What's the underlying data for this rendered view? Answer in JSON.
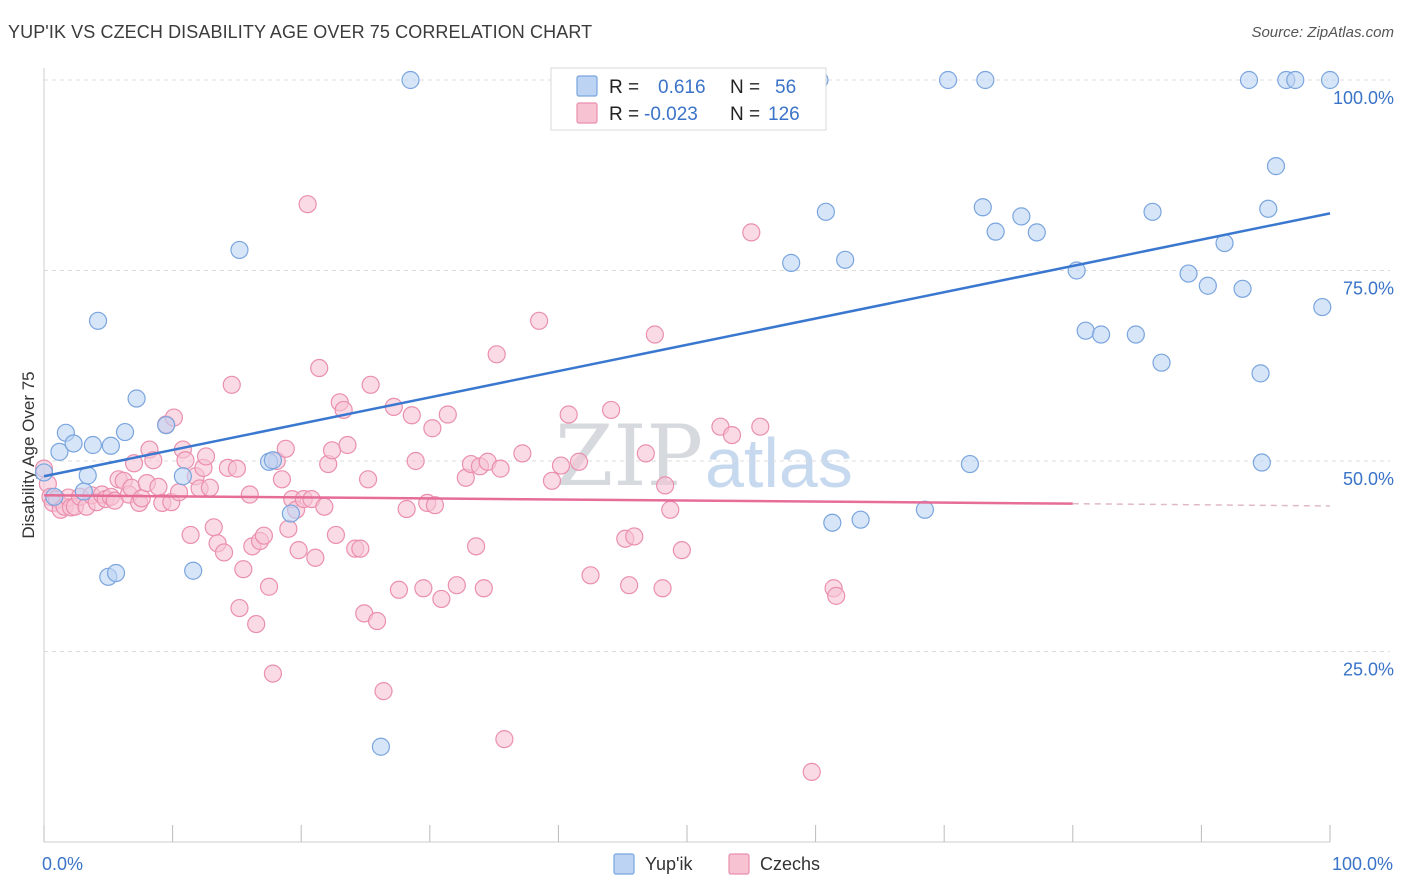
{
  "title": "YUP'IK VS CZECH DISABILITY AGE OVER 75 CORRELATION CHART",
  "source": "Source: ZipAtlas.com",
  "watermark": {
    "zip": "ZIP",
    "atlas": "atlas"
  },
  "colors": {
    "yupik_fill": "#bcd3f3",
    "yupik_stroke": "#7aa5de",
    "yupik_line": "#3a78cf",
    "czech_fill": "#f7c3d3",
    "czech_stroke": "#ea8fae",
    "czech_line": "#e56d98",
    "tick_text": "#3a73c8",
    "grid": "#dcdcdc"
  },
  "legend": {
    "rows": [
      {
        "r_label": "R =",
        "r_value": "0.616",
        "n_label": "N =",
        "n_value": "56",
        "series": "yupik"
      },
      {
        "r_label": "R =",
        "r_value": "-0.023",
        "n_label": "N =",
        "n_value": "126",
        "series": "czech"
      }
    ]
  },
  "chart_data": {
    "type": "scatter",
    "title": "YUP'IK VS CZECH DISABILITY AGE OVER 75 CORRELATION CHART",
    "xlabel": "",
    "ylabel": "Disability Age Over 75",
    "x_tick_labels": [
      "0.0%",
      "100.0%"
    ],
    "y_tick_labels": [
      "25.0%",
      "50.0%",
      "75.0%",
      "100.0%"
    ],
    "y_ticks": [
      25,
      50,
      75,
      100
    ],
    "xlim": [
      0,
      100
    ],
    "ylim": [
      0,
      100
    ],
    "grid": true,
    "legend_position": "top-center",
    "series": [
      {
        "name": "Yup'ik",
        "key": "yupik",
        "trend": {
          "x": [
            0,
            100
          ],
          "y": [
            48.0,
            82.5
          ]
        },
        "points": [
          [
            0,
            48.5
          ],
          [
            0.8,
            45.3
          ],
          [
            1.2,
            51.2
          ],
          [
            1.7,
            53.7
          ],
          [
            2.3,
            52.3
          ],
          [
            3.1,
            46.0
          ],
          [
            3.4,
            48.1
          ],
          [
            3.8,
            52.1
          ],
          [
            4.2,
            68.4
          ],
          [
            5.2,
            52.0
          ],
          [
            5.0,
            34.8
          ],
          [
            5.6,
            35.3
          ],
          [
            6.3,
            53.8
          ],
          [
            7.2,
            58.2
          ],
          [
            9.5,
            54.7
          ],
          [
            10.8,
            48.0
          ],
          [
            11.6,
            35.6
          ],
          [
            15.2,
            77.7
          ],
          [
            17.5,
            49.9
          ],
          [
            17.8,
            50.1
          ],
          [
            19.2,
            43.1
          ],
          [
            26.2,
            12.5
          ],
          [
            28.5,
            100
          ],
          [
            58.1,
            76.0
          ],
          [
            60.3,
            100
          ],
          [
            60.8,
            82.7
          ],
          [
            61.3,
            41.9
          ],
          [
            62.3,
            76.4
          ],
          [
            63.5,
            42.3
          ],
          [
            68.5,
            43.6
          ],
          [
            70.3,
            100
          ],
          [
            72.0,
            49.6
          ],
          [
            73.0,
            83.3
          ],
          [
            73.2,
            100
          ],
          [
            74.0,
            80.1
          ],
          [
            76.0,
            82.1
          ],
          [
            77.2,
            80.0
          ],
          [
            80.3,
            75.0
          ],
          [
            81.0,
            67.1
          ],
          [
            82.2,
            66.6
          ],
          [
            84.9,
            66.6
          ],
          [
            86.2,
            82.7
          ],
          [
            86.9,
            62.9
          ],
          [
            89.0,
            74.6
          ],
          [
            90.5,
            73.0
          ],
          [
            91.8,
            78.6
          ],
          [
            93.2,
            72.6
          ],
          [
            93.7,
            100
          ],
          [
            94.6,
            61.5
          ],
          [
            94.7,
            49.8
          ],
          [
            95.2,
            83.1
          ],
          [
            95.8,
            88.7
          ],
          [
            96.6,
            100
          ],
          [
            97.3,
            100
          ],
          [
            99.4,
            70.2
          ],
          [
            100,
            100
          ]
        ]
      },
      {
        "name": "Czechs",
        "key": "czech",
        "trend": {
          "x": [
            0,
            80
          ],
          "y": [
            45.5,
            44.4
          ]
        },
        "trend_dashed": {
          "x": [
            80,
            100
          ],
          "y": [
            44.4,
            44.1
          ]
        },
        "points": [
          [
            0,
            49.0
          ],
          [
            0.3,
            47.0
          ],
          [
            0.5,
            45.3
          ],
          [
            0.7,
            44.5
          ],
          [
            1.0,
            45.0
          ],
          [
            1.3,
            43.6
          ],
          [
            1.6,
            44.0
          ],
          [
            1.9,
            45.2
          ],
          [
            2.1,
            43.9
          ],
          [
            2.4,
            44.0
          ],
          [
            2.8,
            45.3
          ],
          [
            3.3,
            44.0
          ],
          [
            3.7,
            45.5
          ],
          [
            4.1,
            44.6
          ],
          [
            4.5,
            45.6
          ],
          [
            4.8,
            45.0
          ],
          [
            5.2,
            45.3
          ],
          [
            5.5,
            44.8
          ],
          [
            5.8,
            47.6
          ],
          [
            6.2,
            47.4
          ],
          [
            6.6,
            45.6
          ],
          [
            6.8,
            46.5
          ],
          [
            7.0,
            49.7
          ],
          [
            7.4,
            44.5
          ],
          [
            7.6,
            45.1
          ],
          [
            8.0,
            47.1
          ],
          [
            8.2,
            51.5
          ],
          [
            8.5,
            50.1
          ],
          [
            8.9,
            46.6
          ],
          [
            9.2,
            44.5
          ],
          [
            9.5,
            54.8
          ],
          [
            9.9,
            44.6
          ],
          [
            10.1,
            55.7
          ],
          [
            10.5,
            45.9
          ],
          [
            10.8,
            51.5
          ],
          [
            11.0,
            50.1
          ],
          [
            11.4,
            40.3
          ],
          [
            11.8,
            48.0
          ],
          [
            12.1,
            46.4
          ],
          [
            12.4,
            49.1
          ],
          [
            12.6,
            50.6
          ],
          [
            12.9,
            46.5
          ],
          [
            13.2,
            41.3
          ],
          [
            13.5,
            39.2
          ],
          [
            14.0,
            38.0
          ],
          [
            14.3,
            49.1
          ],
          [
            14.6,
            60.0
          ],
          [
            15.0,
            49.0
          ],
          [
            15.2,
            30.7
          ],
          [
            15.5,
            35.8
          ],
          [
            16.0,
            45.6
          ],
          [
            16.2,
            38.8
          ],
          [
            16.5,
            28.6
          ],
          [
            16.8,
            39.5
          ],
          [
            17.1,
            40.2
          ],
          [
            17.5,
            33.5
          ],
          [
            17.8,
            22.1
          ],
          [
            18.1,
            50.0
          ],
          [
            18.5,
            47.6
          ],
          [
            18.8,
            51.6
          ],
          [
            19.0,
            41.1
          ],
          [
            19.3,
            45.0
          ],
          [
            19.6,
            43.6
          ],
          [
            19.8,
            38.3
          ],
          [
            20.2,
            45.0
          ],
          [
            20.5,
            83.7
          ],
          [
            20.8,
            45.0
          ],
          [
            21.1,
            37.3
          ],
          [
            21.4,
            62.2
          ],
          [
            21.8,
            44.0
          ],
          [
            22.1,
            49.6
          ],
          [
            22.4,
            51.4
          ],
          [
            22.7,
            40.3
          ],
          [
            23.0,
            57.7
          ],
          [
            23.3,
            56.7
          ],
          [
            23.6,
            52.1
          ],
          [
            24.2,
            38.5
          ],
          [
            24.6,
            38.5
          ],
          [
            24.9,
            30.0
          ],
          [
            25.2,
            47.6
          ],
          [
            25.4,
            60.0
          ],
          [
            25.9,
            29.0
          ],
          [
            26.4,
            19.8
          ],
          [
            27.2,
            57.1
          ],
          [
            27.6,
            33.1
          ],
          [
            28.2,
            43.7
          ],
          [
            28.6,
            56.0
          ],
          [
            28.9,
            50.0
          ],
          [
            29.5,
            33.3
          ],
          [
            29.8,
            44.5
          ],
          [
            30.2,
            54.3
          ],
          [
            30.4,
            44.2
          ],
          [
            30.9,
            31.9
          ],
          [
            31.4,
            56.1
          ],
          [
            32.1,
            33.7
          ],
          [
            32.8,
            47.8
          ],
          [
            33.2,
            49.6
          ],
          [
            33.6,
            38.8
          ],
          [
            33.9,
            49.3
          ],
          [
            34.2,
            33.3
          ],
          [
            34.5,
            49.9
          ],
          [
            35.2,
            64.0
          ],
          [
            35.8,
            13.5
          ],
          [
            35.5,
            49.0
          ],
          [
            37.2,
            51.0
          ],
          [
            38.5,
            68.4
          ],
          [
            39.5,
            47.4
          ],
          [
            40.2,
            49.4
          ],
          [
            40.8,
            56.1
          ],
          [
            41.6,
            49.9
          ],
          [
            42.5,
            35.0
          ],
          [
            44.1,
            56.7
          ],
          [
            45.2,
            39.8
          ],
          [
            45.5,
            33.7
          ],
          [
            45.9,
            40.1
          ],
          [
            46.8,
            51.0
          ],
          [
            47.5,
            66.6
          ],
          [
            48.1,
            33.3
          ],
          [
            48.3,
            46.8
          ],
          [
            48.7,
            43.6
          ],
          [
            49.6,
            38.3
          ],
          [
            52.6,
            54.5
          ],
          [
            53.5,
            53.4
          ],
          [
            55.0,
            80.0
          ],
          [
            55.7,
            54.5
          ],
          [
            59.7,
            9.2
          ],
          [
            61.4,
            33.3
          ],
          [
            61.6,
            32.3
          ]
        ]
      }
    ]
  },
  "bottom_legend": [
    {
      "label": "Yup'ik",
      "series": "yupik"
    },
    {
      "label": "Czechs",
      "series": "czech"
    }
  ]
}
